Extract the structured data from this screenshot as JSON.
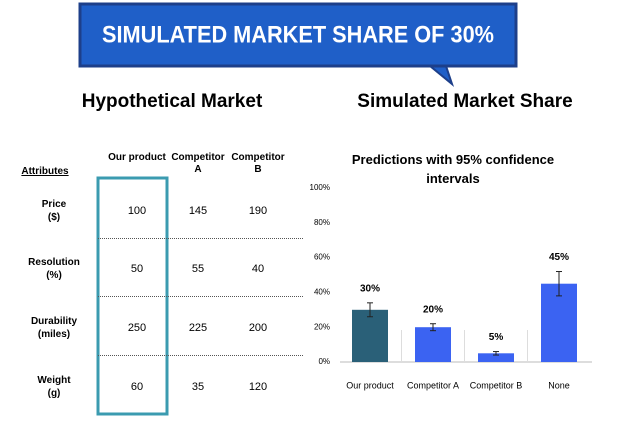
{
  "banner": {
    "title": "SIMULATED MARKET SHARE OF 30%"
  },
  "left_heading": "Hypothetical Market",
  "right_heading": "Simulated Market Share",
  "table": {
    "header": [
      "Attributes",
      "Our product",
      "Competitor A",
      "Competitor B"
    ],
    "rows": [
      {
        "attribute": "Price",
        "unit": "($)",
        "values": [
          "100",
          "145",
          "190"
        ]
      },
      {
        "attribute": "Resolution",
        "unit": "(%)",
        "values": [
          "50",
          "55",
          "40"
        ]
      },
      {
        "attribute": "Durability",
        "unit": "(miles)",
        "values": [
          "250",
          "225",
          "200"
        ]
      },
      {
        "attribute": "Weight",
        "unit": "(g)",
        "values": [
          "60",
          "35",
          "120"
        ]
      }
    ]
  },
  "chart_data": {
    "type": "bar",
    "title": "Predictions with 95% confidence intervals",
    "categories": [
      "Our product",
      "Competitor A",
      "Competitor B",
      "None"
    ],
    "values": [
      30,
      20,
      5,
      45
    ],
    "value_labels": [
      "30%",
      "20%",
      "5%",
      "45%"
    ],
    "errors": [
      4,
      2,
      1,
      7
    ],
    "colors": [
      "#2a6078",
      "#3b63f2",
      "#3b63f2",
      "#3b63f2"
    ],
    "ylim": [
      0,
      100
    ],
    "yticks": [
      {
        "value": 0,
        "label": "0%"
      },
      {
        "value": 20,
        "label": "20%"
      },
      {
        "value": 40,
        "label": "40%"
      },
      {
        "value": 60,
        "label": "60%"
      },
      {
        "value": 80,
        "label": "80%"
      },
      {
        "value": 100,
        "label": "100%"
      }
    ],
    "grid": false
  }
}
